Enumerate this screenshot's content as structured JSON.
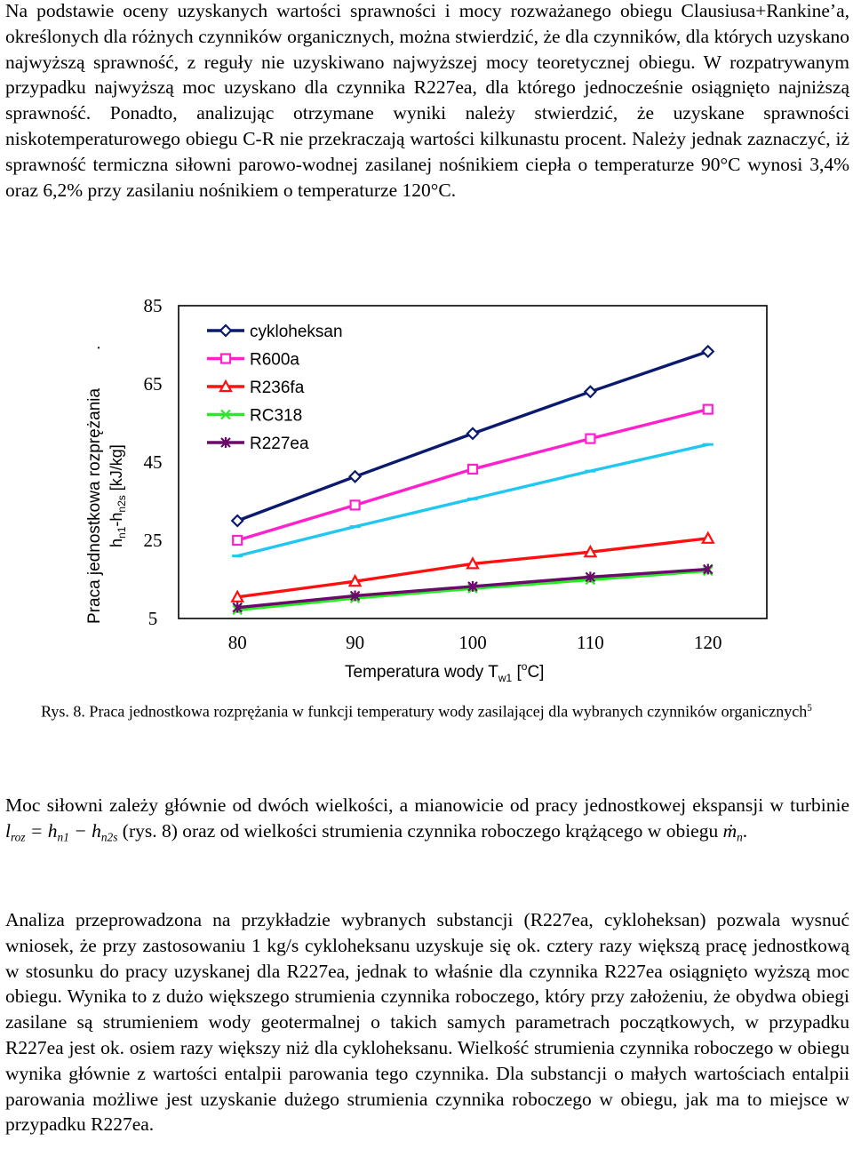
{
  "paragraph1": "Na podstawie oceny uzyskanych wartości sprawności i mocy rozważanego obiegu Clausiusa+Rankine’a, określonych dla różnych czynników organicznych, można stwierdzić, że dla czynników, dla których uzyskano najwyższą sprawność, z reguły nie uzyskiwano najwyższej mocy teoretycznej obiegu. W rozpatrywanym przypadku najwyższą moc uzyskano dla czynnika R227ea, dla którego jednocześnie osiągnięto najniższą sprawność. Ponadto, analizując otrzymane wyniki należy stwierdzić, że uzyskane sprawności niskotemperaturowego obiegu C-R nie przekraczają wartości kilkunastu procent. Należy jednak zaznaczyć, iż sprawność termiczna siłowni parowo-wodnej zasilanej nośnikiem ciepła o temperaturze 90°C wynosi 3,4% oraz 6,2% przy zasilaniu nośnikiem o temperaturze 120°C.",
  "chart_data": {
    "type": "line",
    "ylabel_line1": "Praca jednostkowa rozprężania",
    "ylabel_line2_main": "h",
    "ylabel_line2_sub1": "n1",
    "ylabel_line2_mid": "-h",
    "ylabel_line2_sub2": "n2s",
    "ylabel_line2_unit": " [kJ/kg]",
    "xlabel_main": "Temperatura wody T",
    "xlabel_sub": "w1",
    "xlabel_unit_pre": "  [",
    "xlabel_unit_sup": "o",
    "xlabel_unit_post": "C]",
    "x": [
      80,
      90,
      100,
      110,
      120
    ],
    "xlim": [
      75,
      125
    ],
    "ylim": [
      5,
      85
    ],
    "xticks": [
      "80",
      "90",
      "100",
      "110",
      "120"
    ],
    "yticks": [
      "85",
      "65",
      "45",
      "25",
      "5"
    ],
    "ytick_values": [
      85,
      65,
      45,
      25,
      5
    ],
    "legend_position": "top-left",
    "series": [
      {
        "name": "cykloheksan",
        "color": "#0a1a6e",
        "marker": "diamond",
        "values": [
          30.0,
          41.3,
          52.3,
          63.0,
          73.3
        ]
      },
      {
        "name": "R600a",
        "color": "#ff22cc",
        "marker": "square",
        "values": [
          25.0,
          34.0,
          43.2,
          51.0,
          58.5
        ]
      },
      {
        "name": "R236fa",
        "color": "#ff1010",
        "marker": "triangle",
        "values": [
          10.5,
          14.5,
          19.0,
          22.0,
          25.5
        ]
      },
      {
        "name": "RC318",
        "color": "#22ee22",
        "marker": "x",
        "values": [
          7.2,
          10.2,
          12.7,
          14.9,
          17.2
        ]
      },
      {
        "name": "R227ea",
        "color": "#6a0a6a",
        "marker": "star",
        "values": [
          7.8,
          10.8,
          13.2,
          15.6,
          17.6
        ]
      },
      {
        "name": "",
        "color": "#20c8f0",
        "marker": "dash",
        "values": [
          21.0,
          28.5,
          35.6,
          42.7,
          49.5
        ]
      }
    ],
    "dot_annotation": "."
  },
  "caption": "Rys. 8. Praca jednostkowa rozprężania w funkcji temperatury wody zasilającej dla wybranych czynników organicznych",
  "caption_sup": "5",
  "paragraph2": {
    "text_before": "Moc siłowni zależy głównie od dwóch wielkości, a mianowicie od pracy jednostkowej ekspansji w turbinie ",
    "formula_l": "l",
    "formula_l_sub": "roz",
    "formula_eq": " = h",
    "formula_h1_sub": "n1",
    "formula_minus": " − h",
    "formula_h2_sub": "n2s",
    "text_middle": " (rys. 8) oraz od wielkości strumienia czynnika roboczego krążącego w obiegu ",
    "formula_m": "ṁ",
    "formula_m_sub": "n",
    "text_after": "."
  },
  "paragraph3": "Analiza przeprowadzona na przykładzie wybranych substancji (R227ea, cykloheksan) pozwala wysnuć wniosek, że przy zastosowaniu 1 kg/s cykloheksanu uzyskuje się ok. cztery razy większą pracę jednostkową w stosunku do pracy uzyskanej dla R227ea, jednak to właśnie dla czynnika R227ea osiągnięto wyższą moc obiegu. Wynika to z dużo większego strumienia czynnika roboczego, który przy założeniu, że obydwa obiegi zasilane są strumieniem wody geotermalnej o takich samych parametrach początkowych, w przypadku R227ea jest ok. osiem razy większy niż dla cykloheksanu. Wielkość strumienia czynnika roboczego w obiegu wynika głównie z wartości entalpii parowania tego czynnika. Dla substancji o małych wartościach entalpii parowania możliwe jest uzyskanie dużego strumienia czynnika roboczego w obiegu, jak ma to miejsce w przypadku R227ea."
}
